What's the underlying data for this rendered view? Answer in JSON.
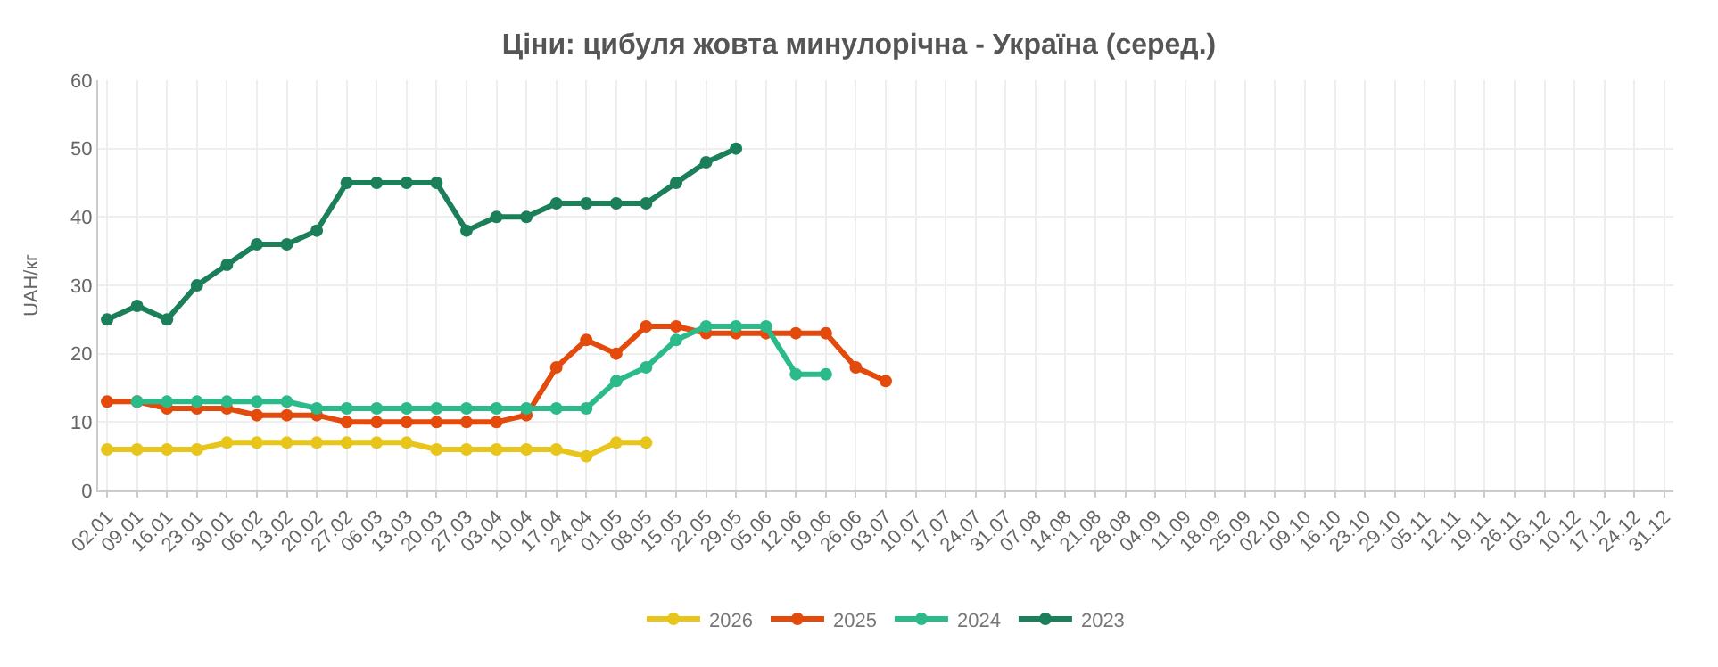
{
  "chart_data": {
    "type": "line",
    "title": "Ціни: цибуля жовта минулорічна - Україна (серед.)",
    "ylabel": "UAH/кг",
    "categories": [
      "02.01",
      "09.01",
      "16.01",
      "23.01",
      "30.01",
      "06.02",
      "13.02",
      "20.02",
      "27.02",
      "06.03",
      "13.03",
      "20.03",
      "27.03",
      "03.04",
      "10.04",
      "17.04",
      "24.04",
      "01.05",
      "08.05",
      "15.05",
      "22.05",
      "29.05",
      "05.06",
      "12.06",
      "19.06",
      "26.06",
      "03.07",
      "10.07",
      "17.07",
      "24.07",
      "31.07",
      "07.08",
      "14.08",
      "21.08",
      "28.08",
      "04.09",
      "11.09",
      "18.09",
      "25.09",
      "02.10",
      "09.10",
      "16.10",
      "23.10",
      "29.10",
      "05.11",
      "12.11",
      "19.11",
      "26.11",
      "03.12",
      "10.12",
      "17.12",
      "24.12",
      "31.12"
    ],
    "series": [
      {
        "name": "2026",
        "color": "#e8c51a",
        "values": [
          6,
          6,
          6,
          6,
          7,
          7,
          7,
          7,
          7,
          7,
          7,
          6,
          6,
          6,
          6,
          6,
          5,
          7,
          7,
          null,
          null,
          null,
          null,
          null,
          null,
          null,
          null,
          null,
          null,
          null,
          null,
          null,
          null,
          null,
          null,
          null,
          null,
          null,
          null,
          null,
          null,
          null,
          null,
          null,
          null,
          null,
          null,
          null,
          null,
          null,
          null,
          null,
          null
        ]
      },
      {
        "name": "2025",
        "color": "#e34a0b",
        "values": [
          13,
          13,
          12,
          12,
          12,
          11,
          11,
          11,
          10,
          10,
          10,
          10,
          10,
          10,
          11,
          18,
          22,
          20,
          24,
          24,
          23,
          23,
          23,
          23,
          23,
          18,
          16,
          null,
          null,
          null,
          null,
          null,
          null,
          null,
          null,
          null,
          null,
          null,
          null,
          null,
          null,
          null,
          null,
          null,
          null,
          null,
          null,
          null,
          null,
          null,
          null,
          null,
          null
        ]
      },
      {
        "name": "2024",
        "color": "#2bbb8a",
        "values": [
          null,
          13,
          13,
          13,
          13,
          13,
          13,
          12,
          12,
          12,
          12,
          12,
          12,
          12,
          12,
          12,
          12,
          16,
          18,
          22,
          24,
          24,
          24,
          17,
          17,
          null,
          null,
          null,
          null,
          null,
          null,
          null,
          null,
          null,
          null,
          null,
          null,
          null,
          null,
          null,
          null,
          null,
          null,
          null,
          null,
          null,
          null,
          null,
          null,
          null,
          null,
          null,
          null
        ]
      },
      {
        "name": "2023",
        "color": "#1b7f5a",
        "values": [
          25,
          27,
          25,
          30,
          33,
          36,
          36,
          38,
          45,
          45,
          45,
          45,
          38,
          40,
          40,
          42,
          42,
          42,
          42,
          45,
          48,
          50,
          null,
          null,
          null,
          null,
          null,
          null,
          null,
          null,
          null,
          null,
          null,
          null,
          null,
          null,
          null,
          null,
          null,
          null,
          null,
          null,
          null,
          null,
          null,
          null,
          null,
          null,
          null,
          null,
          null,
          null,
          null
        ]
      }
    ],
    "ylim": [
      0,
      60
    ],
    "yticks": [
      0,
      10,
      20,
      30,
      40,
      50,
      60
    ],
    "grid": true,
    "legend": "bottom",
    "marker": "circle",
    "line_style": "solid"
  }
}
